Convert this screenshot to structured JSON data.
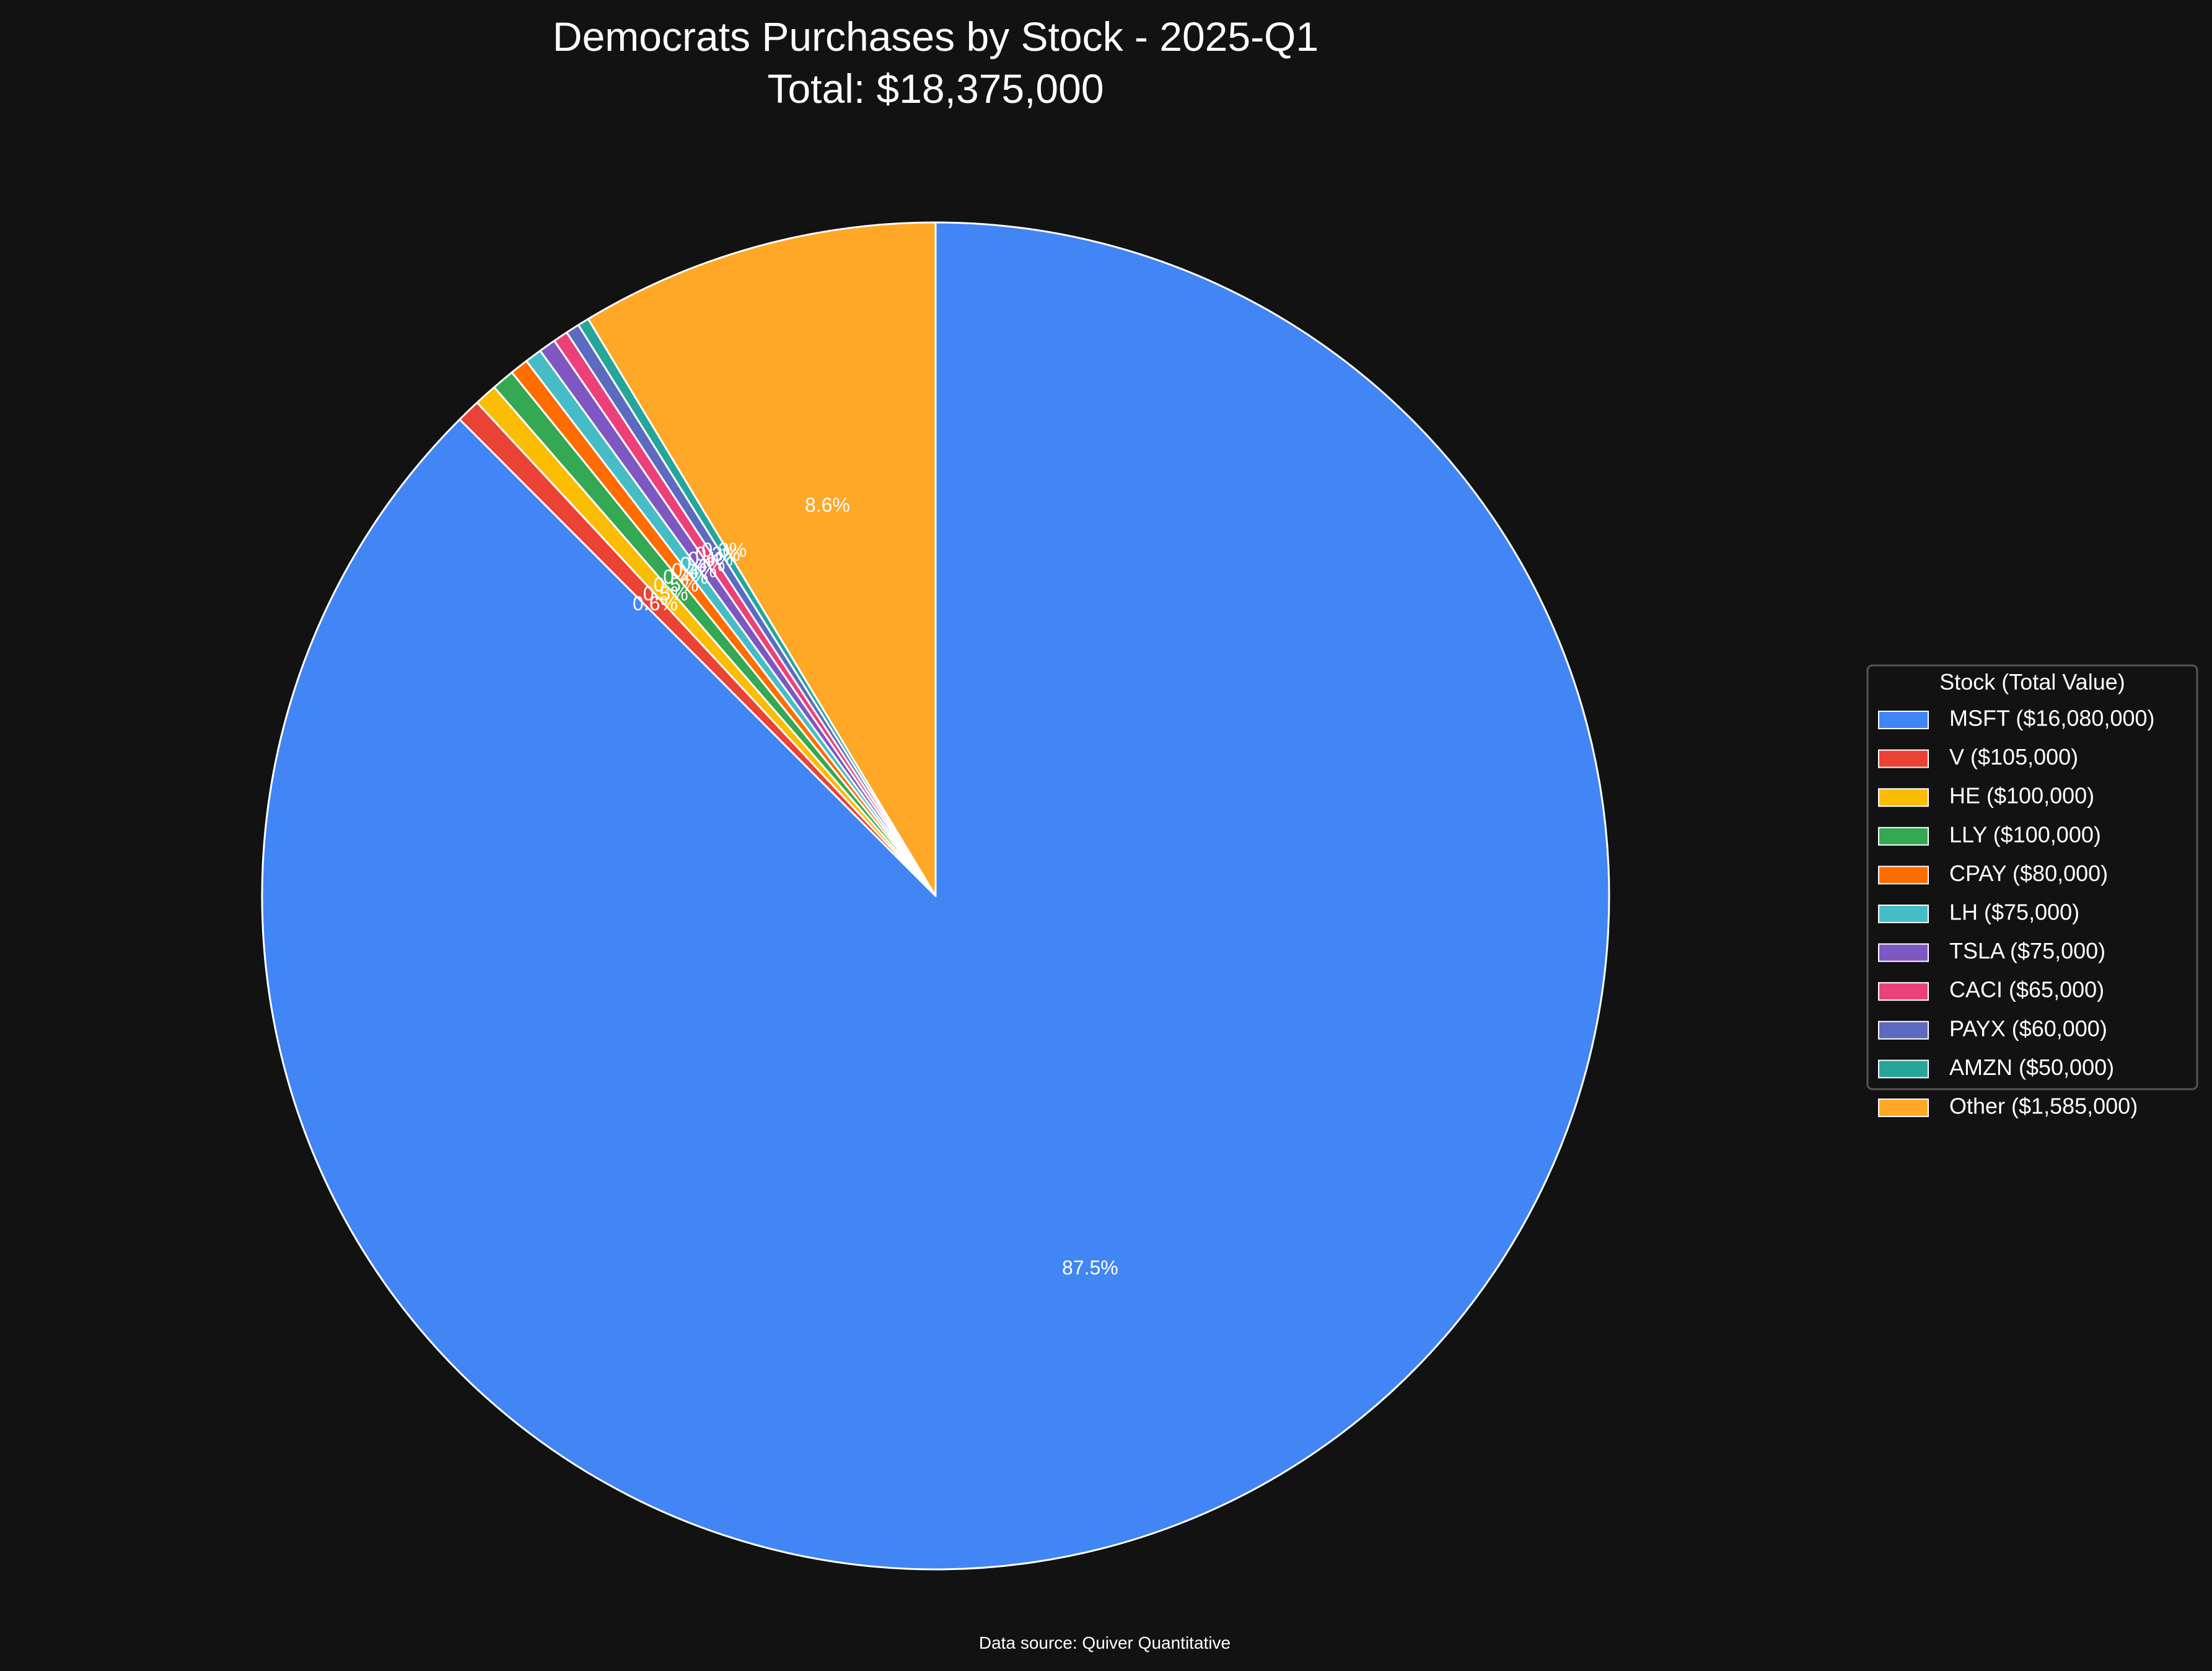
{
  "background_color": "#121212",
  "chart_data": {
    "type": "pie",
    "title": "Democrats Purchases by Stock - 2025-Q1",
    "subtitle": "Total: $18,375,000",
    "start_angle_deg": 90,
    "direction": "clockwise",
    "wedge_edge_color": "#ffffff",
    "slices": [
      {
        "label": "MSFT",
        "value": 16080000,
        "legend": "MSFT ($16,080,000)",
        "pct_label": "87.5%",
        "color": "#4285f4"
      },
      {
        "label": "V",
        "value": 105000,
        "legend": "V ($105,000)",
        "pct_label": "0.6%",
        "color": "#ea4335"
      },
      {
        "label": "HE",
        "value": 100000,
        "legend": "HE ($100,000)",
        "pct_label": "0.5%",
        "color": "#fbbc04"
      },
      {
        "label": "LLY",
        "value": 100000,
        "legend": "LLY ($100,000)",
        "pct_label": "0.5%",
        "color": "#34a853"
      },
      {
        "label": "CPAY",
        "value": 80000,
        "legend": "CPAY ($80,000)",
        "pct_label": "0.4%",
        "color": "#ff6d01"
      },
      {
        "label": "LH",
        "value": 75000,
        "legend": "LH ($75,000)",
        "pct_label": "0.4%",
        "color": "#46bdc6"
      },
      {
        "label": "TSLA",
        "value": 75000,
        "legend": "TSLA ($75,000)",
        "pct_label": "0.4%",
        "color": "#7e57c2"
      },
      {
        "label": "CACI",
        "value": 65000,
        "legend": "CACI ($65,000)",
        "pct_label": "0.4%",
        "color": "#ec407a"
      },
      {
        "label": "PAYX",
        "value": 60000,
        "legend": "PAYX ($60,000)",
        "pct_label": "0.3%",
        "color": "#5c6bc0"
      },
      {
        "label": "AMZN",
        "value": 50000,
        "legend": "AMZN ($50,000)",
        "pct_label": "0.3%",
        "color": "#26a69a"
      },
      {
        "label": "Other",
        "value": 1585000,
        "legend": "Other ($1,585,000)",
        "pct_label": "8.6%",
        "color": "#ffa726"
      }
    ],
    "legend": {
      "title": "Stock (Total Value)",
      "placement": "right-center"
    },
    "footnote": "Data source: Quiver Quantitative"
  }
}
